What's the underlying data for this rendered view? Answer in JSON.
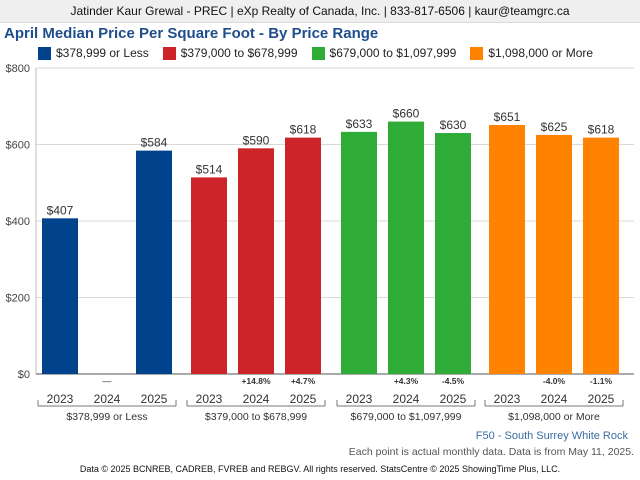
{
  "header": {
    "text": "Jatinder Kaur Grewal - PREC | eXp Realty of Canada, Inc. | 833-817-6506 | kaur@teamgrc.ca"
  },
  "chart_data": {
    "type": "bar",
    "title": "April Median Price Per Square Foot - By Price Range",
    "ylim": [
      0,
      800
    ],
    "yticks": [
      0,
      200,
      400,
      600,
      800
    ],
    "ytick_labels": [
      "$0",
      "$200",
      "$400",
      "$600",
      "$800"
    ],
    "grid": true,
    "legend": "top",
    "categories": [
      "2023",
      "2024",
      "2025"
    ],
    "series": [
      {
        "name": "$378,999 or Less",
        "group_label": "$378,999 or Less",
        "color": "#00428c",
        "values": [
          407,
          null,
          584
        ],
        "value_labels": [
          "$407",
          "—",
          "$584"
        ],
        "changes": [
          "",
          "",
          ""
        ]
      },
      {
        "name": "$379,000 to $678,999",
        "group_label": "$379,000 to $678,999",
        "color": "#cc2428",
        "values": [
          514,
          590,
          618
        ],
        "value_labels": [
          "$514",
          "$590",
          "$618"
        ],
        "changes": [
          "",
          "+14.8%",
          "+4.7%"
        ]
      },
      {
        "name": "$679,000 to $1,097,999",
        "group_label": "$679,000 to $1,097,999",
        "color": "#2fac37",
        "values": [
          633,
          660,
          630
        ],
        "value_labels": [
          "$633",
          "$660",
          "$630"
        ],
        "changes": [
          "",
          "+4.3%",
          "-4.5%"
        ]
      },
      {
        "name": "$1,098,000 or More",
        "group_label": "$1,098,000 or More",
        "color": "#ff8300",
        "values": [
          651,
          625,
          618
        ],
        "value_labels": [
          "$651",
          "$625",
          "$618"
        ],
        "changes": [
          "",
          "-4.0%",
          "-1.1%"
        ]
      }
    ]
  },
  "region": "F50 - South Surrey White Rock",
  "note": "Each point is actual monthly data. Data is from May 11, 2025.",
  "footer": "Data © 2025 BCNREB, CADREB, FVREB and REBGV. All rights reserved. StatsCentre © 2025 ShowingTime Plus, LLC."
}
